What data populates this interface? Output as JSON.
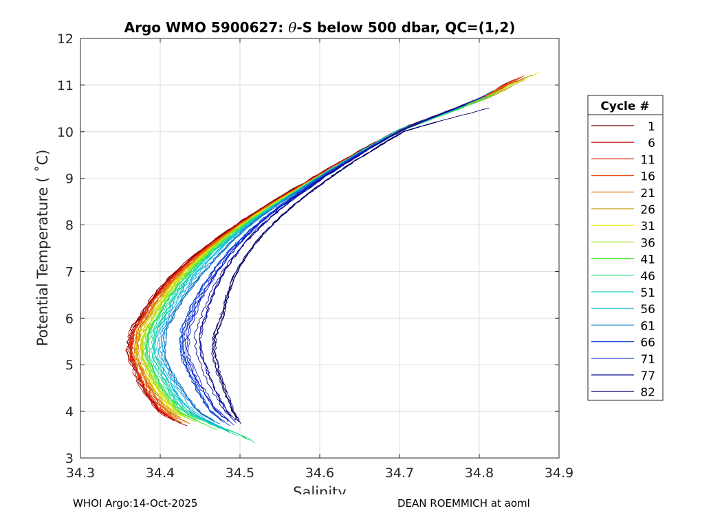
{
  "chart_data": {
    "type": "line",
    "title_parts": [
      "Argo WMO 5900627: ",
      "θ",
      "-S below 500 dbar,  QC=(1,2)"
    ],
    "xlabel": "Salinity",
    "ylabel": "Potential Temperature ( ˚C)",
    "xlim": [
      34.3,
      34.9
    ],
    "ylim": [
      3,
      12
    ],
    "xticks": [
      "34.3",
      "34.4",
      "34.5",
      "34.6",
      "34.7",
      "34.8",
      "34.9"
    ],
    "yticks": [
      "3",
      "4",
      "5",
      "6",
      "7",
      "8",
      "9",
      "10",
      "11",
      "12"
    ],
    "grid": true,
    "legend_title": "Cycle #",
    "legend_position": "right",
    "legend": [
      {
        "label": "1",
        "color": "#7a0000"
      },
      {
        "label": "6",
        "color": "#c00000"
      },
      {
        "label": "11",
        "color": "#e01e0a"
      },
      {
        "label": "16",
        "color": "#e8500f"
      },
      {
        "label": "21",
        "color": "#e07a10"
      },
      {
        "label": "26",
        "color": "#c8a000"
      },
      {
        "label": "31",
        "color": "#e6e600"
      },
      {
        "label": "36",
        "color": "#a8e21c"
      },
      {
        "label": "41",
        "color": "#55e640"
      },
      {
        "label": "46",
        "color": "#20dc7a"
      },
      {
        "label": "51",
        "color": "#18d2b4"
      },
      {
        "label": "56",
        "color": "#10b4dc"
      },
      {
        "label": "61",
        "color": "#0a78c8"
      },
      {
        "label": "66",
        "color": "#0a46d2"
      },
      {
        "label": "71",
        "color": "#0a1ec8"
      },
      {
        "label": "77",
        "color": "#0a0a96"
      },
      {
        "label": "82",
        "color": "#000064"
      }
    ],
    "theta_knots": [
      3.3,
      4.0,
      5.0,
      5.5,
      6.0,
      7.0,
      8.0,
      9.0,
      10.0,
      11.0
    ],
    "series": [
      {
        "cycle": "1",
        "s_top": 34.87,
        "t_top": 11.3,
        "s_bottom": 34.47,
        "t_bottom": 3.72,
        "s_knots": [
          34.47,
          34.4,
          34.367,
          34.362,
          34.375,
          34.42,
          34.495,
          34.59,
          34.695,
          34.815
        ]
      },
      {
        "cycle": "6",
        "s_top": 34.87,
        "t_top": 11.25,
        "s_bottom": 34.47,
        "t_bottom": 3.75,
        "s_knots": [
          34.47,
          34.4,
          34.368,
          34.364,
          34.377,
          34.422,
          34.497,
          34.592,
          34.697,
          34.817
        ]
      },
      {
        "cycle": "11",
        "s_top": 34.87,
        "t_top": 11.3,
        "s_bottom": 34.47,
        "t_bottom": 3.75,
        "s_knots": [
          34.47,
          34.402,
          34.37,
          34.366,
          34.379,
          34.424,
          34.498,
          34.592,
          34.697,
          34.817
        ]
      },
      {
        "cycle": "16",
        "s_top": 34.86,
        "t_top": 11.2,
        "s_bottom": 34.47,
        "t_bottom": 3.78,
        "s_knots": [
          34.47,
          34.405,
          34.372,
          34.368,
          34.381,
          34.426,
          34.499,
          34.593,
          34.697,
          34.817
        ]
      },
      {
        "cycle": "21",
        "s_top": 34.86,
        "t_top": 11.2,
        "s_bottom": 34.48,
        "t_bottom": 3.78,
        "s_knots": [
          34.48,
          34.41,
          34.375,
          34.371,
          34.384,
          34.428,
          34.5,
          34.594,
          34.698,
          34.818
        ]
      },
      {
        "cycle": "26",
        "s_top": 34.87,
        "t_top": 11.2,
        "s_bottom": 34.48,
        "t_bottom": 3.8,
        "s_knots": [
          34.48,
          34.414,
          34.378,
          34.374,
          34.387,
          34.43,
          34.501,
          34.595,
          34.698,
          34.818
        ]
      },
      {
        "cycle": "31",
        "s_top": 34.88,
        "t_top": 11.3,
        "s_bottom": 34.49,
        "t_bottom": 3.8,
        "s_knots": [
          34.49,
          34.418,
          34.38,
          34.376,
          34.389,
          34.432,
          34.502,
          34.595,
          34.698,
          34.818
        ]
      },
      {
        "cycle": "36",
        "s_top": 34.89,
        "t_top": 11.38,
        "s_bottom": 34.49,
        "t_bottom": 3.8,
        "s_knots": [
          34.49,
          34.421,
          34.383,
          34.379,
          34.392,
          34.434,
          34.503,
          34.596,
          34.699,
          34.818
        ]
      },
      {
        "cycle": "41",
        "s_top": 34.85,
        "t_top": 11.1,
        "s_bottom": 34.5,
        "t_bottom": 3.6,
        "s_knots": [
          34.5,
          34.425,
          34.387,
          34.383,
          34.396,
          34.437,
          34.505,
          34.597,
          34.7,
          34.818
        ]
      },
      {
        "cycle": "46",
        "s_top": 34.84,
        "t_top": 11.0,
        "s_bottom": 34.52,
        "t_bottom": 3.3,
        "s_knots": [
          34.515,
          34.43,
          34.393,
          34.388,
          34.4,
          34.44,
          34.507,
          34.598,
          34.7,
          34.818
        ]
      },
      {
        "cycle": "51",
        "s_top": 34.74,
        "t_top": 10.35,
        "s_bottom": 34.51,
        "t_bottom": 3.45,
        "s_knots": [
          34.51,
          34.435,
          34.397,
          34.392,
          34.404,
          34.443,
          34.508,
          34.596,
          34.695,
          34.815
        ]
      },
      {
        "cycle": "56",
        "s_top": 34.82,
        "t_top": 10.9,
        "s_bottom": 34.51,
        "t_bottom": 3.55,
        "s_knots": [
          34.51,
          34.44,
          34.404,
          34.399,
          34.41,
          34.448,
          34.51,
          34.598,
          34.698,
          34.815
        ]
      },
      {
        "cycle": "61",
        "s_top": 34.82,
        "t_top": 10.85,
        "s_bottom": 34.51,
        "t_bottom": 3.65,
        "s_knots": [
          34.505,
          34.448,
          34.41,
          34.405,
          34.415,
          34.455,
          34.513,
          34.598,
          34.698,
          34.815
        ]
      },
      {
        "cycle": "66",
        "s_top": 34.81,
        "t_top": 10.8,
        "s_bottom": 34.51,
        "t_bottom": 3.7,
        "s_knots": [
          34.505,
          34.462,
          34.43,
          34.424,
          34.432,
          34.465,
          34.52,
          34.6,
          34.698,
          34.813
        ]
      },
      {
        "cycle": "71",
        "s_top": 34.81,
        "t_top": 10.8,
        "s_bottom": 34.52,
        "t_bottom": 3.75,
        "s_knots": [
          34.515,
          34.472,
          34.44,
          34.435,
          34.442,
          34.472,
          34.523,
          34.602,
          34.699,
          34.813
        ]
      },
      {
        "cycle": "77",
        "s_top": 34.81,
        "t_top": 10.8,
        "s_bottom": 34.52,
        "t_bottom": 3.72,
        "s_knots": [
          34.515,
          34.482,
          34.455,
          34.448,
          34.455,
          34.48,
          34.528,
          34.604,
          34.7,
          34.812
        ]
      },
      {
        "cycle": "82",
        "s_top": 34.815,
        "t_top": 10.52,
        "s_bottom": 34.51,
        "t_bottom": 3.75,
        "s_knots": [
          34.51,
          34.49,
          34.468,
          34.465,
          34.475,
          34.495,
          34.54,
          34.612,
          34.705,
          34.815
        ]
      }
    ]
  },
  "footer": {
    "left": "WHOI Argo:14-Oct-2025",
    "right": "DEAN ROEMMICH at aoml"
  }
}
